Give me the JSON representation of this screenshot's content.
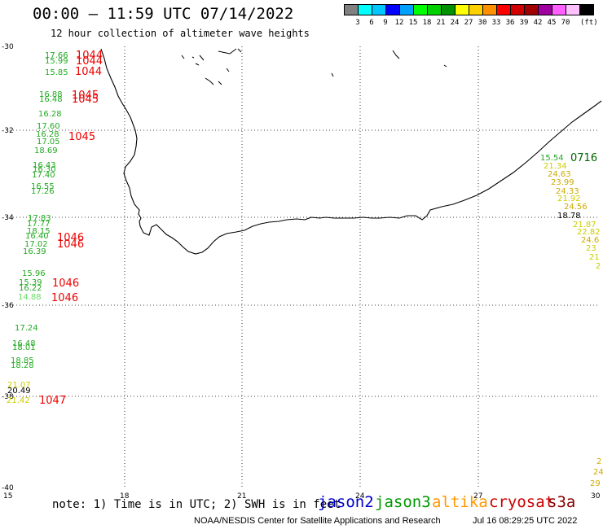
{
  "header": {
    "title": "00:00 – 11:59 UTC 07/14/2022",
    "subtitle": "12 hour collection of altimeter wave heights"
  },
  "scale": {
    "colors": [
      "#808080",
      "#00ffff",
      "#00c8ff",
      "#0000ff",
      "#00a0ff",
      "#00ff00",
      "#00d000",
      "#009000",
      "#ffff00",
      "#ffd000",
      "#ff9000",
      "#ff0000",
      "#d00000",
      "#a00000",
      "#a000a0",
      "#ff60ff",
      "#ffc0ff",
      "#000000"
    ],
    "labels": [
      "3",
      "6",
      "9",
      "12",
      "15",
      "18",
      "21",
      "24",
      "27",
      "30",
      "33",
      "36",
      "39",
      "42",
      "45",
      "70"
    ],
    "unit": "(ft)"
  },
  "axes": {
    "lat_ticks": [
      "-30",
      "-32",
      "-34",
      "-36",
      "-38",
      "-40"
    ],
    "lon_ticks": [
      "15",
      "18",
      "21",
      "24",
      "27",
      "30"
    ]
  },
  "observations": {
    "west": [
      {
        "v": "17.66",
        "c": "#22aa22"
      },
      {
        "v": "15.99",
        "c": "#22aa22"
      },
      {
        "v": "15.85",
        "c": "#22aa22"
      },
      {
        "v": "16.88",
        "c": "#22aa22"
      },
      {
        "v": "16.48",
        "c": "#22aa22"
      },
      {
        "v": "16.28",
        "c": "#22aa22"
      },
      {
        "v": "17.60",
        "c": "#22aa22"
      },
      {
        "v": "16.28",
        "c": "#22aa22"
      },
      {
        "v": "17.05",
        "c": "#22aa22"
      },
      {
        "v": "18.69",
        "c": "#22aa22"
      },
      {
        "v": "16.43",
        "c": "#22aa22"
      },
      {
        "v": "16.30",
        "c": "#22aa22"
      },
      {
        "v": "17.40",
        "c": "#22aa22"
      },
      {
        "v": "16.55",
        "c": "#22aa22"
      },
      {
        "v": "17.26",
        "c": "#22aa22"
      },
      {
        "v": "17.83",
        "c": "#22aa22"
      },
      {
        "v": "17.77",
        "c": "#22aa22"
      },
      {
        "v": "18.15",
        "c": "#22aa22"
      },
      {
        "v": "16.40",
        "c": "#22aa22"
      },
      {
        "v": "17.02",
        "c": "#22aa22"
      },
      {
        "v": "16.39",
        "c": "#22aa22"
      },
      {
        "v": "15.96",
        "c": "#22aa22"
      },
      {
        "v": "15.39",
        "c": "#22aa22"
      },
      {
        "v": "16.22",
        "c": "#22aa22"
      },
      {
        "v": "14.88",
        "c": "#66dd66"
      },
      {
        "v": "17.24",
        "c": "#22aa22"
      },
      {
        "v": "16.48",
        "c": "#22aa22"
      },
      {
        "v": "18.01",
        "c": "#22aa22"
      },
      {
        "v": "18.85",
        "c": "#22aa22"
      },
      {
        "v": "18.28",
        "c": "#22aa22"
      },
      {
        "v": "21.07",
        "c": "#cccc00"
      },
      {
        "v": "20.49",
        "c": "#000000"
      },
      {
        "v": "21.42",
        "c": "#cccc00"
      }
    ],
    "west_times": [
      "1044",
      "1044",
      "1044",
      "1045",
      "1045",
      "1045",
      "1046",
      "1046",
      "1046",
      "1046",
      "1047"
    ],
    "east": [
      {
        "v": "15.54",
        "c": "#22aa22"
      },
      {
        "v": "21.34",
        "c": "#cccc00"
      },
      {
        "v": "24.63",
        "c": "#ccaa00"
      },
      {
        "v": "23.99",
        "c": "#ccaa00"
      },
      {
        "v": "24.33",
        "c": "#ccaa00"
      },
      {
        "v": "21.92",
        "c": "#cccc00"
      },
      {
        "v": "24.56",
        "c": "#ccaa00"
      },
      {
        "v": "18.78",
        "c": "#000000"
      },
      {
        "v": "21.87",
        "c": "#cccc00"
      },
      {
        "v": "22.82",
        "c": "#cccc00"
      },
      {
        "v": "24.6",
        "c": "#ccaa00"
      },
      {
        "v": "23",
        "c": "#cccc00"
      },
      {
        "v": "21",
        "c": "#cccc00"
      },
      {
        "v": "2",
        "c": "#cccc00"
      }
    ],
    "east_time": "0716",
    "south_east": [
      {
        "v": "2",
        "c": "#ccaa00"
      },
      {
        "v": "24",
        "c": "#ccaa00"
      },
      {
        "v": "29",
        "c": "#ccaa00"
      }
    ]
  },
  "footer": {
    "note": "note: 1) Time is in UTC; 2) SWH is in feet",
    "satellites": [
      {
        "name": "jason2",
        "color": "#0000cc"
      },
      {
        "name": "jason3",
        "color": "#009900"
      },
      {
        "name": "altika",
        "color": "#ff9900"
      },
      {
        "name": "cryosat",
        "color": "#cc0000"
      },
      {
        "name": "s3a",
        "color": "#880000"
      }
    ],
    "credit": "NOAA/NESDIS Center for Satellite Applications and Research",
    "timestamp": "Jul 16 08:29:25 UTC 2022"
  }
}
